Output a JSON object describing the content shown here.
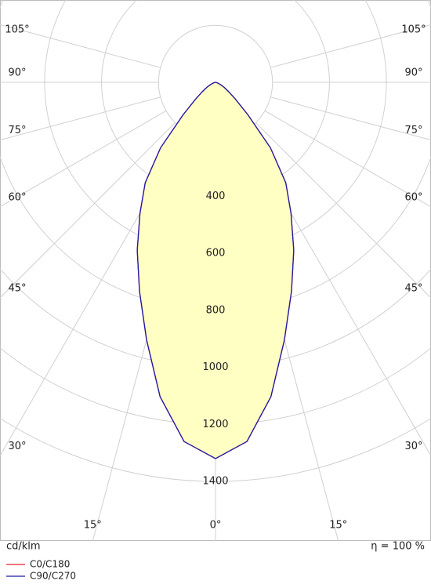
{
  "chart_data": {
    "type": "polar",
    "unit_label": "cd/klm",
    "efficiency_label": "η = 100 %",
    "angles": [
      0,
      5,
      10,
      15,
      20,
      25,
      30,
      35,
      40,
      45,
      50,
      55,
      60,
      65,
      70,
      75,
      80,
      85,
      90
    ],
    "series": [
      {
        "name": "C0/C180",
        "color": "#e0262b",
        "values": [
          1320,
          1265,
          1120,
          935,
          780,
          650,
          530,
          430,
          300,
          160,
          90,
          55,
          35,
          20,
          10,
          5,
          2,
          0,
          0
        ]
      },
      {
        "name": "C90/C270",
        "color": "#1c1ca8",
        "values": [
          1320,
          1265,
          1120,
          935,
          780,
          650,
          530,
          430,
          300,
          160,
          90,
          55,
          35,
          20,
          10,
          5,
          2,
          0,
          0
        ]
      }
    ],
    "fill_color": "#ffffc4",
    "rlim": [
      0,
      1400
    ],
    "rticks": [
      400,
      600,
      800,
      1000,
      1200,
      1400
    ],
    "angle_ticks": [
      {
        "value": 0,
        "label": "0°"
      },
      {
        "value": 15,
        "label": "15°"
      },
      {
        "value": 30,
        "label": "30°"
      },
      {
        "value": 45,
        "label": "45°"
      },
      {
        "value": 60,
        "label": "60°"
      },
      {
        "value": 75,
        "label": "75°"
      },
      {
        "value": 90,
        "label": "90°"
      },
      {
        "value": 105,
        "label": "105°"
      }
    ]
  }
}
